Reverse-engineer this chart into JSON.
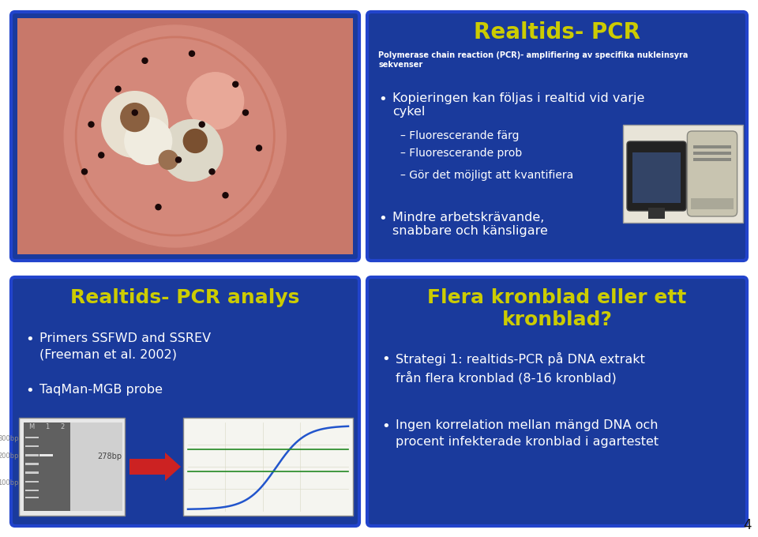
{
  "bg_color": "#ffffff",
  "panel_bg_blue": "#1a3a9c",
  "panel_bg_dark": "#1a3a9c",
  "panel_border_blue": "#2244cc",
  "yellow_title": "#cccc00",
  "white_text": "#ffffff",
  "black_text": "#111111",
  "top_right_title": "Realtids- PCR",
  "top_right_subtitle": "Polymerase chain reaction (PCR)- amplifiering av specifika nukleinsyra\nsekvenser",
  "bottom_left_title": "Realtids- PCR analys",
  "bottom_left_b1": "Primers SSFWD and SSREV\n(Freeman et al. 2002)",
  "bottom_left_b2": "TaqMan-MGB probe",
  "bottom_right_title": "Flera kronblad eller ett\nkronblad?",
  "bottom_right_b1": "Strategi 1: realtids-PCR på DNA extrakt\nfrån flera kronblad (8-16 kronblad)",
  "bottom_right_b2": "Ingen korrelation mellan mängd DNA och\nprocent infekterade kronblad i agartestet",
  "page_number": "4",
  "tr_bullet1": "Kopieringen kan följas i realtid vid varje\ncykel",
  "tr_sub1": "Fluorescerande färg",
  "tr_sub2": "Fluorescerande prob",
  "tr_sub3": "Gör det möjligt att kvantifiera",
  "tr_bullet2": "Mindre arbetskrävande,\nsnabbare och känsligare"
}
